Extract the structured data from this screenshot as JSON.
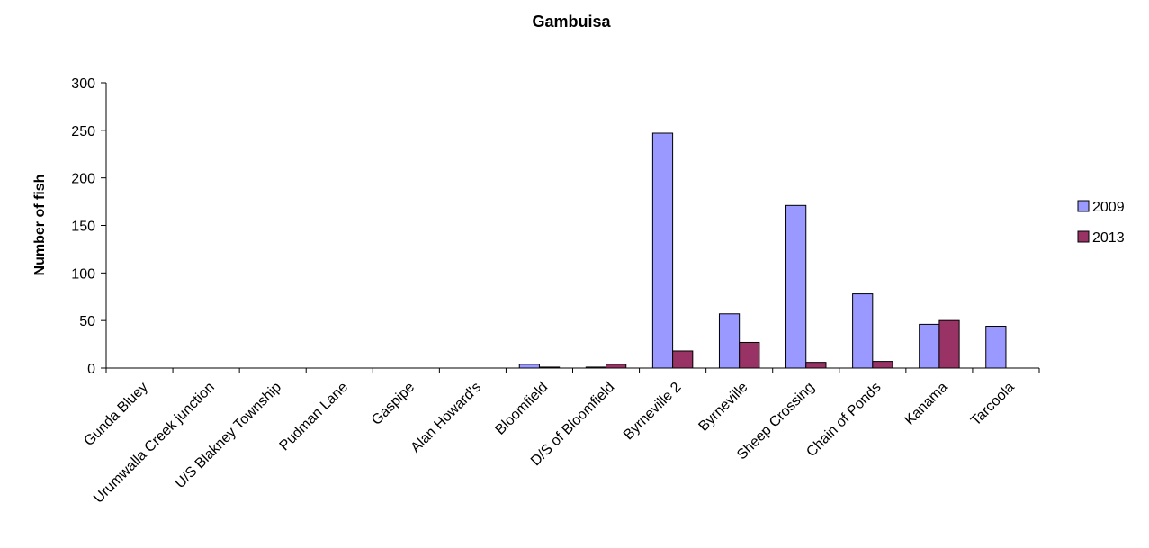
{
  "chart_data": {
    "type": "bar",
    "title": "Gambuisa",
    "xlabel": "",
    "ylabel": "Number of fish",
    "ylim": [
      0,
      300
    ],
    "yticks": [
      0,
      50,
      100,
      150,
      200,
      250,
      300
    ],
    "categories": [
      "Gunda Bluey",
      "Urumwalla Creek junction",
      "U/S Blakney Township",
      "Pudman Lane",
      "Gaspipe",
      "Alan Howard's",
      "Bloomfield",
      "D/S of Bloomfield",
      "Byrneville 2",
      "Byrneville",
      "Sheep Crossing",
      "Chain of Ponds",
      "Kanama",
      "Tarcoola"
    ],
    "series": [
      {
        "name": "2009",
        "color": "#9999ff",
        "values": [
          0,
          0,
          0,
          0,
          0,
          0,
          4,
          1,
          247,
          57,
          171,
          78,
          46,
          44
        ]
      },
      {
        "name": "2013",
        "color": "#993366",
        "values": [
          0,
          0,
          0,
          0,
          0,
          0,
          1,
          4,
          18,
          27,
          6,
          7,
          50,
          0
        ]
      }
    ],
    "legend": "right",
    "grid": false
  }
}
